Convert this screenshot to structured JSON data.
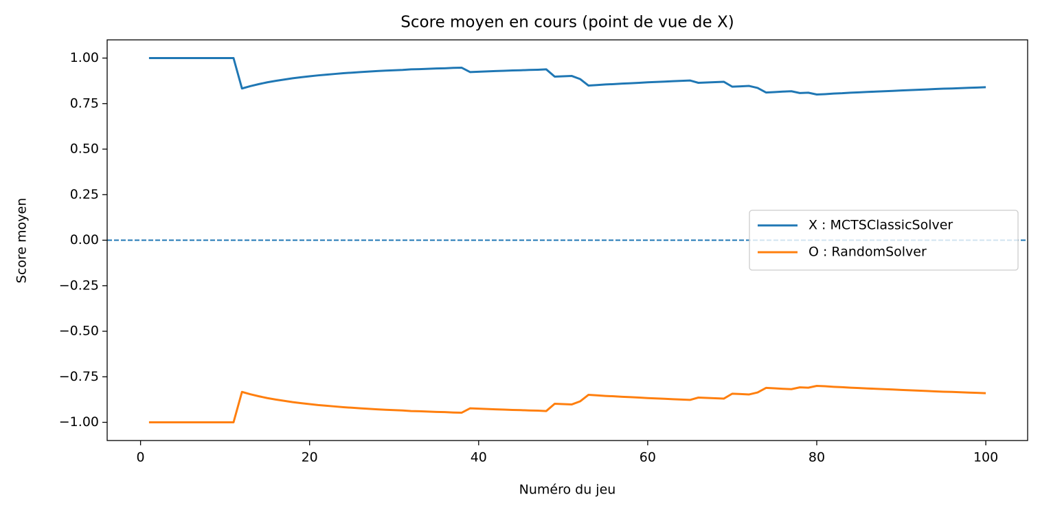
{
  "chart_data": {
    "type": "line",
    "title": "Score moyen en cours (point de vue de X)",
    "x_label": "Numéro du jeu",
    "y_label": "Score moyen",
    "x": [
      1,
      2,
      3,
      4,
      5,
      6,
      7,
      8,
      9,
      10,
      11,
      12,
      13,
      14,
      15,
      16,
      17,
      18,
      19,
      20,
      21,
      22,
      23,
      24,
      25,
      26,
      27,
      28,
      29,
      30,
      31,
      32,
      33,
      34,
      35,
      36,
      37,
      38,
      39,
      40,
      41,
      42,
      43,
      44,
      45,
      46,
      47,
      48,
      49,
      50,
      51,
      52,
      53,
      54,
      55,
      56,
      57,
      58,
      59,
      60,
      61,
      62,
      63,
      64,
      65,
      66,
      67,
      68,
      69,
      70,
      71,
      72,
      73,
      74,
      75,
      76,
      77,
      78,
      79,
      80,
      81,
      82,
      83,
      84,
      85,
      86,
      87,
      88,
      89,
      90,
      91,
      92,
      93,
      94,
      95,
      96,
      97,
      98,
      99,
      100
    ],
    "series": [
      {
        "name": "X : MCTSClassicSolver",
        "color": "#1f77b4",
        "values": [
          1,
          1,
          1,
          1,
          1,
          1,
          1,
          1,
          1,
          1,
          1,
          0.833,
          0.846,
          0.857,
          0.867,
          0.875,
          0.882,
          0.889,
          0.895,
          0.9,
          0.905,
          0.909,
          0.913,
          0.917,
          0.92,
          0.923,
          0.926,
          0.929,
          0.931,
          0.933,
          0.935,
          0.938,
          0.939,
          0.941,
          0.943,
          0.944,
          0.946,
          0.947,
          0.923,
          0.925,
          0.927,
          0.929,
          0.93,
          0.932,
          0.933,
          0.935,
          0.936,
          0.938,
          0.898,
          0.9,
          0.902,
          0.885,
          0.849,
          0.852,
          0.855,
          0.857,
          0.86,
          0.862,
          0.864,
          0.867,
          0.869,
          0.871,
          0.873,
          0.875,
          0.877,
          0.864,
          0.866,
          0.868,
          0.87,
          0.843,
          0.845,
          0.847,
          0.836,
          0.811,
          0.813,
          0.816,
          0.818,
          0.808,
          0.81,
          0.8,
          0.802,
          0.805,
          0.807,
          0.81,
          0.812,
          0.814,
          0.816,
          0.818,
          0.82,
          0.822,
          0.824,
          0.826,
          0.828,
          0.83,
          0.832,
          0.833,
          0.835,
          0.837,
          0.838,
          0.84
        ]
      },
      {
        "name": "O : RandomSolver",
        "color": "#ff7f0e",
        "values": [
          -1,
          -1,
          -1,
          -1,
          -1,
          -1,
          -1,
          -1,
          -1,
          -1,
          -1,
          -0.833,
          -0.846,
          -0.857,
          -0.867,
          -0.875,
          -0.882,
          -0.889,
          -0.895,
          -0.9,
          -0.905,
          -0.909,
          -0.913,
          -0.917,
          -0.92,
          -0.923,
          -0.926,
          -0.929,
          -0.931,
          -0.933,
          -0.935,
          -0.938,
          -0.939,
          -0.941,
          -0.943,
          -0.944,
          -0.946,
          -0.947,
          -0.923,
          -0.925,
          -0.927,
          -0.929,
          -0.93,
          -0.932,
          -0.933,
          -0.935,
          -0.936,
          -0.938,
          -0.898,
          -0.9,
          -0.902,
          -0.885,
          -0.849,
          -0.852,
          -0.855,
          -0.857,
          -0.86,
          -0.862,
          -0.864,
          -0.867,
          -0.869,
          -0.871,
          -0.873,
          -0.875,
          -0.877,
          -0.864,
          -0.866,
          -0.868,
          -0.87,
          -0.843,
          -0.845,
          -0.847,
          -0.836,
          -0.811,
          -0.813,
          -0.816,
          -0.818,
          -0.808,
          -0.81,
          -0.8,
          -0.802,
          -0.805,
          -0.807,
          -0.81,
          -0.812,
          -0.814,
          -0.816,
          -0.818,
          -0.82,
          -0.822,
          -0.824,
          -0.826,
          -0.828,
          -0.83,
          -0.832,
          -0.833,
          -0.835,
          -0.837,
          -0.838,
          -0.84
        ]
      }
    ],
    "reference_line": {
      "y": 0,
      "color": "#1f77b4",
      "style": "dashed"
    },
    "xlim": [
      -3.95,
      104.95
    ],
    "xticks": [
      0,
      20,
      40,
      60,
      80,
      100
    ],
    "ylim": [
      -1.1,
      1.1
    ],
    "yticks": [
      {
        "value": -1,
        "label": "−1.00"
      },
      {
        "value": -0.75,
        "label": "−0.75"
      },
      {
        "value": -0.5,
        "label": "−0.50"
      },
      {
        "value": -0.25,
        "label": "−0.25"
      },
      {
        "value": 0,
        "label": "0.00"
      },
      {
        "value": 0.25,
        "label": "0.25"
      },
      {
        "value": 0.5,
        "label": "0.50"
      },
      {
        "value": 0.75,
        "label": "0.75"
      },
      {
        "value": 1,
        "label": "1.00"
      }
    ],
    "grid": false,
    "legend": "center right"
  }
}
